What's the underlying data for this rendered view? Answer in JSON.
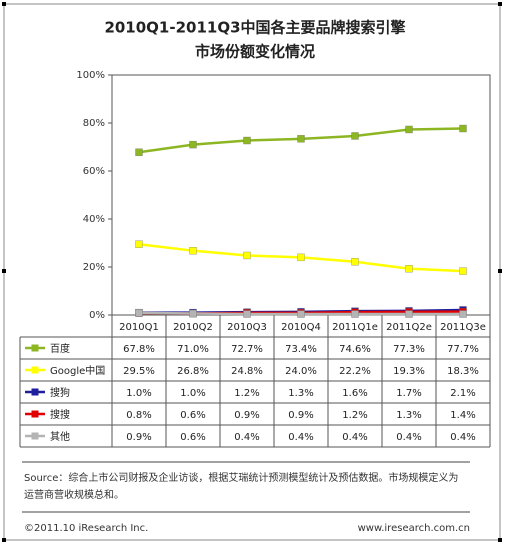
{
  "chart_data": {
    "type": "line",
    "title": [
      "2010Q1-2011Q3中国各主要品牌搜索引擎",
      "市场份额变化情况"
    ],
    "categories": [
      "2010Q1",
      "2010Q2",
      "2010Q3",
      "2010Q4",
      "2011Q1e",
      "2011Q2e",
      "2011Q3e"
    ],
    "series": [
      {
        "name": "百度",
        "color": "#8db623",
        "values": [
          67.8,
          71.0,
          72.7,
          73.4,
          74.6,
          77.3,
          77.7
        ],
        "value_labels": [
          "67.8%",
          "71.0%",
          "72.7%",
          "73.4%",
          "74.6%",
          "77.3%",
          "77.7%"
        ]
      },
      {
        "name": "Google中国",
        "color": "#ffff00",
        "values": [
          29.5,
          26.8,
          24.8,
          24.0,
          22.2,
          19.3,
          18.3
        ],
        "value_labels": [
          "29.5%",
          "26.8%",
          "24.8%",
          "24.0%",
          "22.2%",
          "19.3%",
          "18.3%"
        ]
      },
      {
        "name": "搜狗",
        "color": "#1f1f9e",
        "values": [
          1.0,
          1.0,
          1.2,
          1.3,
          1.6,
          1.7,
          2.1
        ],
        "value_labels": [
          "1.0%",
          "1.0%",
          "1.2%",
          "1.3%",
          "1.6%",
          "1.7%",
          "2.1%"
        ]
      },
      {
        "name": "搜搜",
        "color": "#e00000",
        "values": [
          0.8,
          0.6,
          0.9,
          0.9,
          1.2,
          1.3,
          1.4
        ],
        "value_labels": [
          "0.8%",
          "0.6%",
          "0.9%",
          "0.9%",
          "1.2%",
          "1.3%",
          "1.4%"
        ]
      },
      {
        "name": "其他",
        "color": "#b4b4b4",
        "values": [
          0.9,
          0.6,
          0.4,
          0.4,
          0.4,
          0.4,
          0.4
        ],
        "value_labels": [
          "0.9%",
          "0.6%",
          "0.4%",
          "0.4%",
          "0.4%",
          "0.4%",
          "0.4%"
        ]
      }
    ],
    "ylim": [
      0,
      100
    ],
    "yticks": [
      {
        "value": 0,
        "label": "0%"
      },
      {
        "value": 20,
        "label": "20%"
      },
      {
        "value": 40,
        "label": "40%"
      },
      {
        "value": 60,
        "label": "60%"
      },
      {
        "value": 80,
        "label": "80%"
      },
      {
        "value": 100,
        "label": "100%"
      }
    ],
    "grid": false,
    "source": [
      "Source：综合上市公司财报及企业访谈，根据艾瑞统计预测模型统计及预估数据。市场规模定义为",
      "运营商营收规模总和。"
    ],
    "copyright": "©2011.10 iResearch Inc.",
    "website": "www.iresearch.com.cn"
  }
}
